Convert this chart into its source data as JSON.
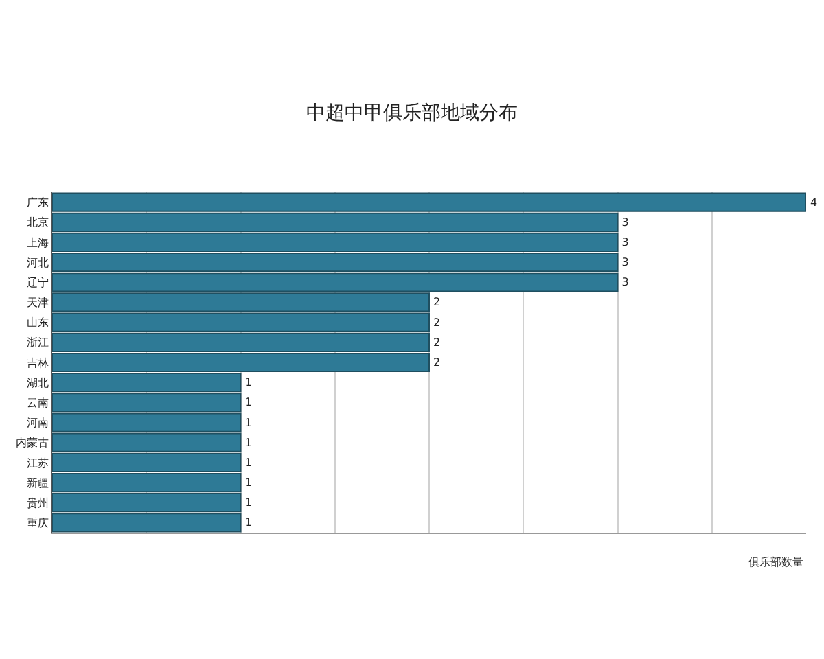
{
  "chart_data": {
    "type": "bar",
    "orientation": "horizontal",
    "title": "中超中甲俱乐部地域分布",
    "xlabel": "俱乐部数量",
    "categories": [
      "广东",
      "北京",
      "上海",
      "河北",
      "辽宁",
      "天津",
      "山东",
      "浙江",
      "吉林",
      "湖北",
      "云南",
      "河南",
      "内蒙古",
      "江苏",
      "新疆",
      "贵州",
      "重庆"
    ],
    "values": [
      4,
      3,
      3,
      3,
      3,
      2,
      2,
      2,
      2,
      1,
      1,
      1,
      1,
      1,
      1,
      1,
      1
    ],
    "color": "#2e7a96",
    "xlim": [
      0,
      4
    ],
    "xticks": [
      {
        "value": 0,
        "label": null
      },
      {
        "value": 0.5,
        "label": null
      },
      {
        "value": 1,
        "label": null
      },
      {
        "value": 1.5,
        "label": null
      },
      {
        "value": 2,
        "label": null
      },
      {
        "value": 2.5,
        "label": null
      },
      {
        "value": 3,
        "label": null
      },
      {
        "value": 3.5,
        "label": null
      }
    ],
    "tick_labels": "y",
    "grid": "x",
    "data_labels": true
  }
}
